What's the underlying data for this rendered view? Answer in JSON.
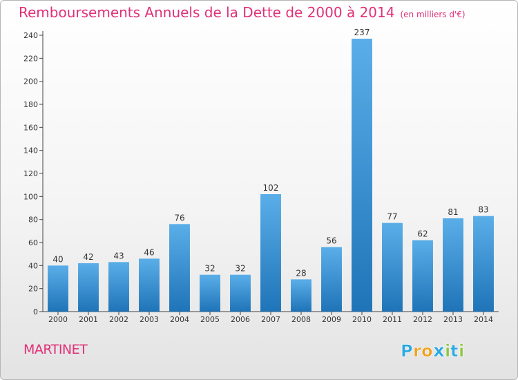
{
  "chart_data": {
    "type": "bar",
    "title": "Remboursements Annuels de la Dette de 2000 à 2014",
    "unit_note": "(en milliers d'€)",
    "categories": [
      "2000",
      "2001",
      "2002",
      "2003",
      "2004",
      "2005",
      "2006",
      "2007",
      "2008",
      "2009",
      "2010",
      "2011",
      "2012",
      "2013",
      "2014"
    ],
    "values": [
      40,
      42,
      43,
      46,
      76,
      32,
      32,
      102,
      28,
      56,
      237,
      77,
      62,
      81,
      83
    ],
    "ylim": [
      0,
      240
    ],
    "yticks": [
      0,
      20,
      40,
      60,
      80,
      100,
      120,
      140,
      160,
      180,
      200,
      220,
      240
    ],
    "grid": false,
    "bar_color_light": "#5aaee8",
    "bar_color_dark": "#1f74b8"
  },
  "commune": "MARTINET",
  "logo": {
    "text": "Proxiti",
    "letters": [
      "P",
      "r",
      "o",
      "x",
      "i",
      "t",
      "i"
    ],
    "colors": [
      "#2aa8e0",
      "#f0a020",
      "#f0a020",
      "#2aa8e0",
      "#8cc63f",
      "#2aa8e0",
      "#8cc63f"
    ]
  },
  "accent_color": "#e03078"
}
